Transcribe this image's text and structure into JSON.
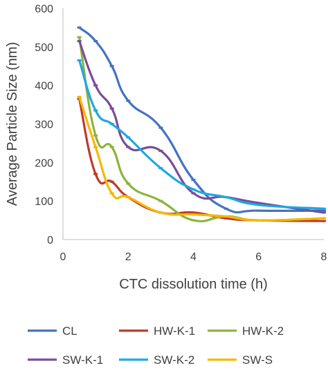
{
  "chart_data": {
    "type": "line",
    "title": "",
    "xlabel": "CTC dissolution time (h)",
    "ylabel": "Average Particle Size (nm)",
    "xlim": [
      0,
      8
    ],
    "ylim": [
      0,
      600
    ],
    "xticks": [
      0,
      2,
      4,
      6,
      8
    ],
    "yticks": [
      0,
      100,
      200,
      300,
      400,
      500,
      600
    ],
    "grid": false,
    "smooth": true,
    "legend_position": "bottom",
    "series": [
      {
        "name": "CL",
        "color": "#4472C4",
        "x": [
          0.5,
          1,
          1.5,
          2,
          3,
          4,
          5,
          6,
          8
        ],
        "y": [
          550,
          515,
          450,
          360,
          290,
          155,
          80,
          75,
          75
        ]
      },
      {
        "name": "HW-K-1",
        "color": "#C0392B",
        "x": [
          0.5,
          1,
          1.5,
          2,
          3,
          4,
          5,
          6,
          8
        ],
        "y": [
          365,
          170,
          150,
          110,
          70,
          70,
          55,
          50,
          48
        ]
      },
      {
        "name": "HW-K-2",
        "color": "#8DB33C",
        "x": [
          0.5,
          1,
          1.5,
          2,
          3,
          4,
          5,
          6,
          8
        ],
        "y": [
          525,
          270,
          240,
          145,
          100,
          50,
          60,
          50,
          55
        ]
      },
      {
        "name": "SW-K-1",
        "color": "#7A4C9A",
        "x": [
          0.5,
          1,
          1.5,
          2,
          3,
          4,
          5,
          6,
          8
        ],
        "y": [
          515,
          400,
          340,
          240,
          230,
          120,
          110,
          95,
          70
        ]
      },
      {
        "name": "SW-K-2",
        "color": "#1CA8E3",
        "x": [
          0.5,
          1,
          1.5,
          2,
          3,
          4,
          5,
          6,
          8
        ],
        "y": [
          465,
          335,
          300,
          265,
          185,
          130,
          110,
          90,
          80
        ]
      },
      {
        "name": "SW-S",
        "color": "#F5B800",
        "x": [
          0.5,
          1,
          1.5,
          2,
          3,
          4,
          5,
          6,
          8
        ],
        "y": [
          370,
          240,
          120,
          110,
          70,
          65,
          60,
          50,
          55
        ]
      }
    ]
  }
}
